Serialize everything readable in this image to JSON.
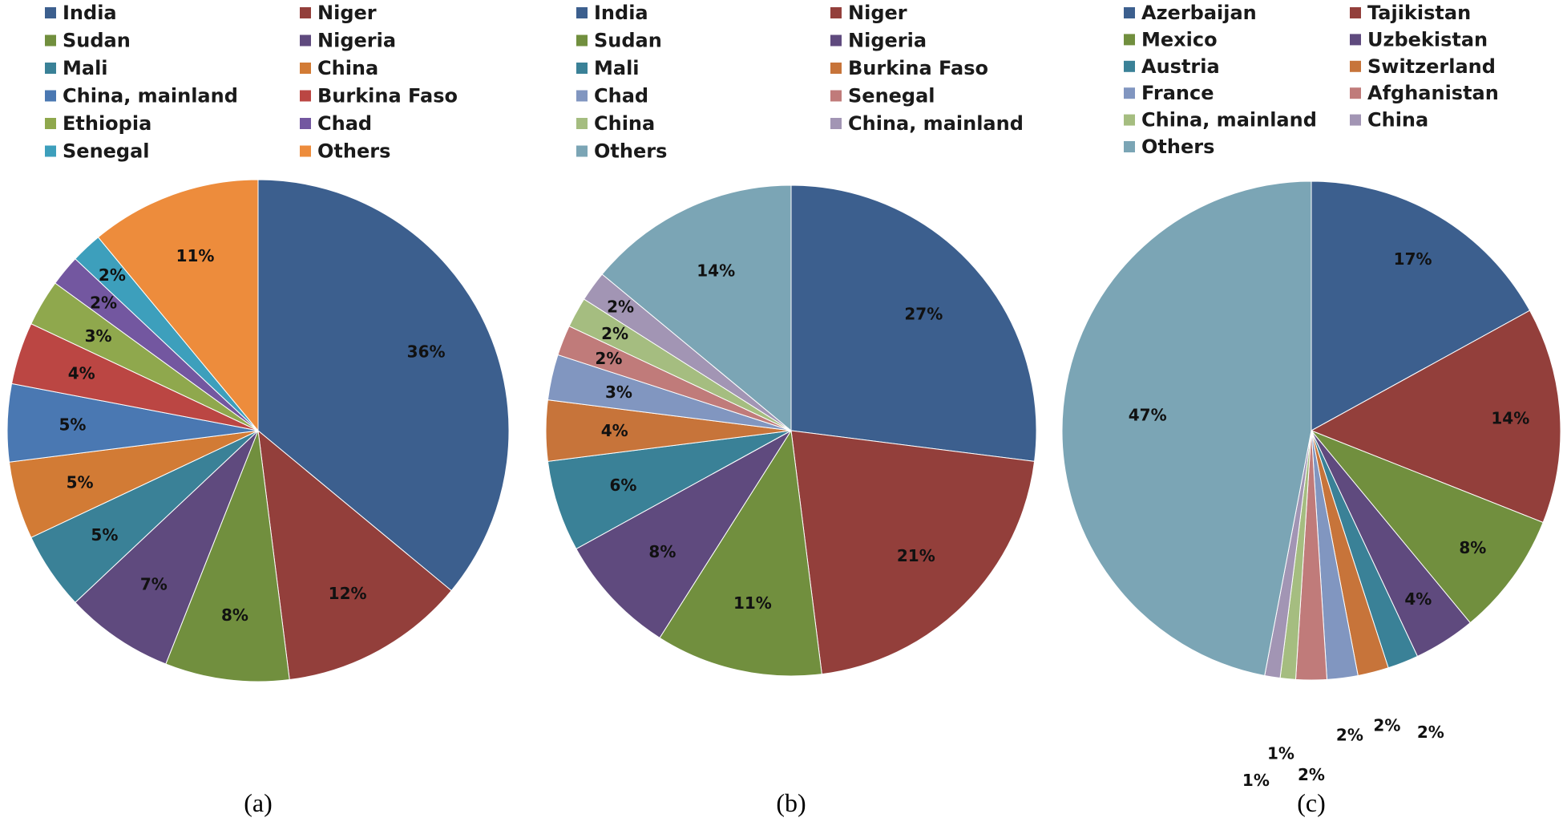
{
  "chart_data": [
    {
      "type": "pie",
      "caption": "(a)",
      "categories": [
        "India",
        "Niger",
        "Sudan",
        "Nigeria",
        "Mali",
        "China",
        "China, mainland",
        "Burkina Faso",
        "Ethiopia",
        "Chad",
        "Senegal",
        "Others"
      ],
      "values": [
        36,
        12,
        8,
        7,
        5,
        5,
        5,
        4,
        3,
        2,
        2,
        11
      ],
      "labels": [
        "36%",
        "12%",
        "8%",
        "7%",
        "5%",
        "5%",
        "5%",
        "4%",
        "3%",
        "2%",
        "2%",
        "11%"
      ],
      "colors": [
        "#3c5f8e",
        "#933f3b",
        "#718f3e",
        "#5f4a7e",
        "#3a8197",
        "#d27b35",
        "#4a78b2",
        "#bb4643",
        "#8fa84d",
        "#7357a0",
        "#3d9fbc",
        "#ed8c3c"
      ],
      "legend_position": "top"
    },
    {
      "type": "pie",
      "caption": "(b)",
      "categories": [
        "India",
        "Niger",
        "Sudan",
        "Nigeria",
        "Mali",
        "Burkina Faso",
        "Chad",
        "Senegal",
        "China",
        "China, mainland",
        "Others"
      ],
      "values": [
        27,
        21,
        11,
        8,
        6,
        4,
        3,
        2,
        2,
        2,
        14
      ],
      "labels": [
        "27%",
        "21%",
        "11%",
        "8%",
        "6%",
        "4%",
        "3%",
        "2%",
        "2%",
        "2%",
        "14%"
      ],
      "colors": [
        "#3c5f8e",
        "#933f3b",
        "#718f3e",
        "#5f4a7e",
        "#3a8197",
        "#c7743a",
        "#8196c0",
        "#c07b7a",
        "#a5bd80",
        "#a295b4",
        "#7ba5b5"
      ],
      "legend_position": "top"
    },
    {
      "type": "pie",
      "caption": "(c)",
      "categories": [
        "Azerbaijan",
        "Tajikistan",
        "Mexico",
        "Uzbekistan",
        "Austria",
        "Switzerland",
        "France",
        "Afghanistan",
        "China, mainland",
        "China",
        "Others"
      ],
      "values": [
        17,
        14,
        8,
        4,
        2,
        2,
        2,
        2,
        1,
        1,
        47
      ],
      "labels": [
        "17%",
        "14%",
        "8%",
        "4%",
        "2%",
        "2%",
        "2%",
        "2%",
        "1%",
        "1%",
        "47%"
      ],
      "colors": [
        "#3c5f8e",
        "#933f3b",
        "#718f3e",
        "#5f4a7e",
        "#3a8197",
        "#c7743a",
        "#8196c0",
        "#c07b7a",
        "#a5bd80",
        "#a295b4",
        "#7ba5b5"
      ],
      "legend_position": "top"
    }
  ]
}
